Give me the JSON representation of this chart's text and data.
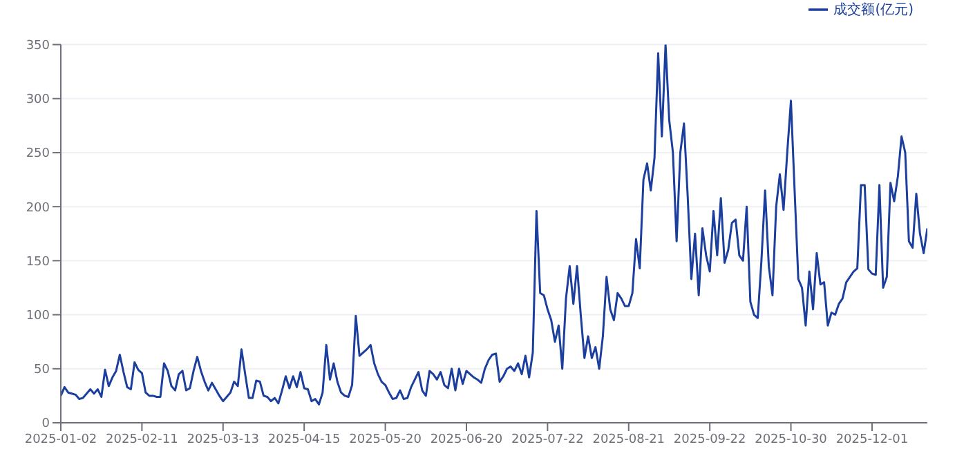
{
  "chart_data": {
    "type": "line",
    "legend": "top right",
    "grid": "y",
    "marker": "none",
    "line_style": "solid",
    "ylim": [
      0,
      350
    ],
    "yticks": [
      0,
      50,
      100,
      150,
      200,
      250,
      300,
      350
    ],
    "categories": [
      "2025-01-02",
      null,
      null,
      null,
      null,
      null,
      null,
      null,
      null,
      null,
      null,
      null,
      null,
      null,
      null,
      null,
      null,
      null,
      null,
      null,
      null,
      null,
      "2025-02-11",
      null,
      null,
      null,
      null,
      null,
      null,
      null,
      null,
      null,
      null,
      null,
      null,
      null,
      null,
      null,
      null,
      null,
      null,
      null,
      null,
      null,
      "2025-03-13",
      null,
      null,
      null,
      null,
      null,
      null,
      null,
      null,
      null,
      null,
      null,
      null,
      null,
      null,
      null,
      null,
      null,
      null,
      null,
      null,
      null,
      "2025-04-15",
      null,
      null,
      null,
      null,
      null,
      null,
      null,
      null,
      null,
      null,
      null,
      null,
      null,
      null,
      null,
      null,
      null,
      null,
      null,
      null,
      null,
      "2025-05-20",
      null,
      null,
      null,
      null,
      null,
      null,
      null,
      null,
      null,
      null,
      null,
      null,
      null,
      null,
      null,
      null,
      null,
      null,
      null,
      null,
      null,
      "2025-06-20",
      null,
      null,
      null,
      null,
      null,
      null,
      null,
      null,
      null,
      null,
      null,
      null,
      null,
      null,
      null,
      null,
      null,
      null,
      null,
      null,
      null,
      "2025-07-22",
      null,
      null,
      null,
      null,
      null,
      null,
      null,
      null,
      null,
      null,
      null,
      null,
      null,
      null,
      null,
      null,
      null,
      null,
      null,
      null,
      null,
      "2025-08-21",
      null,
      null,
      null,
      null,
      null,
      null,
      null,
      null,
      null,
      null,
      null,
      null,
      null,
      null,
      null,
      null,
      null,
      null,
      null,
      null,
      null,
      "2025-09-22",
      null,
      null,
      null,
      null,
      null,
      null,
      null,
      null,
      null,
      null,
      null,
      null,
      null,
      null,
      null,
      null,
      null,
      null,
      null,
      null,
      null,
      "2025-10-30",
      null,
      null,
      null,
      null,
      null,
      null,
      null,
      null,
      null,
      null,
      null,
      null,
      null,
      null,
      null,
      null,
      null,
      null,
      null,
      null,
      null,
      "2025-12-01",
      null,
      null,
      null,
      null,
      null,
      null,
      null,
      null,
      null,
      null,
      null,
      null,
      null,
      null,
      null
    ],
    "series": [
      {
        "name": "成交额(亿元)",
        "color": "#1c3f9e",
        "values": [
          25,
          33,
          28,
          27,
          26,
          22,
          23,
          27,
          31,
          27,
          31,
          24,
          49,
          34,
          42,
          48,
          63,
          47,
          33,
          31,
          56,
          49,
          46,
          28,
          25,
          25,
          24,
          24,
          55,
          48,
          34,
          30,
          45,
          48,
          30,
          32,
          48,
          61,
          48,
          38,
          30,
          37,
          31,
          25,
          20,
          24,
          28,
          38,
          34,
          68,
          45,
          23,
          23,
          39,
          38,
          25,
          24,
          20,
          23,
          18,
          30,
          43,
          32,
          43,
          33,
          47,
          32,
          31,
          20,
          22,
          17,
          28,
          72,
          40,
          55,
          38,
          28,
          25,
          24,
          35,
          99,
          62,
          65,
          68,
          72,
          55,
          45,
          38,
          35,
          28,
          22,
          23,
          30,
          22,
          23,
          33,
          40,
          47,
          30,
          25,
          48,
          45,
          40,
          47,
          35,
          32,
          50,
          30,
          50,
          36,
          48,
          45,
          42,
          40,
          37,
          50,
          58,
          63,
          64,
          38,
          43,
          50,
          52,
          48,
          55,
          45,
          62,
          42,
          65,
          196,
          120,
          118,
          105,
          95,
          75,
          90,
          50,
          115,
          145,
          110,
          145,
          100,
          60,
          80,
          60,
          70,
          50,
          80,
          135,
          105,
          95,
          120,
          115,
          108,
          108,
          120,
          170,
          143,
          225,
          240,
          215,
          245,
          342,
          265,
          350,
          280,
          250,
          168,
          250,
          277,
          210,
          133,
          175,
          118,
          180,
          155,
          140,
          196,
          155,
          208,
          148,
          160,
          185,
          188,
          155,
          150,
          200,
          112,
          100,
          97,
          150,
          215,
          145,
          118,
          200,
          230,
          197,
          250,
          298,
          215,
          133,
          125,
          90,
          140,
          105,
          157,
          128,
          130,
          90,
          102,
          100,
          110,
          115,
          130,
          135,
          140,
          143,
          220,
          220,
          142,
          138,
          137,
          220,
          125,
          135,
          222,
          205,
          228,
          265,
          250,
          168,
          162,
          212,
          175,
          157,
          180
        ]
      }
    ]
  }
}
